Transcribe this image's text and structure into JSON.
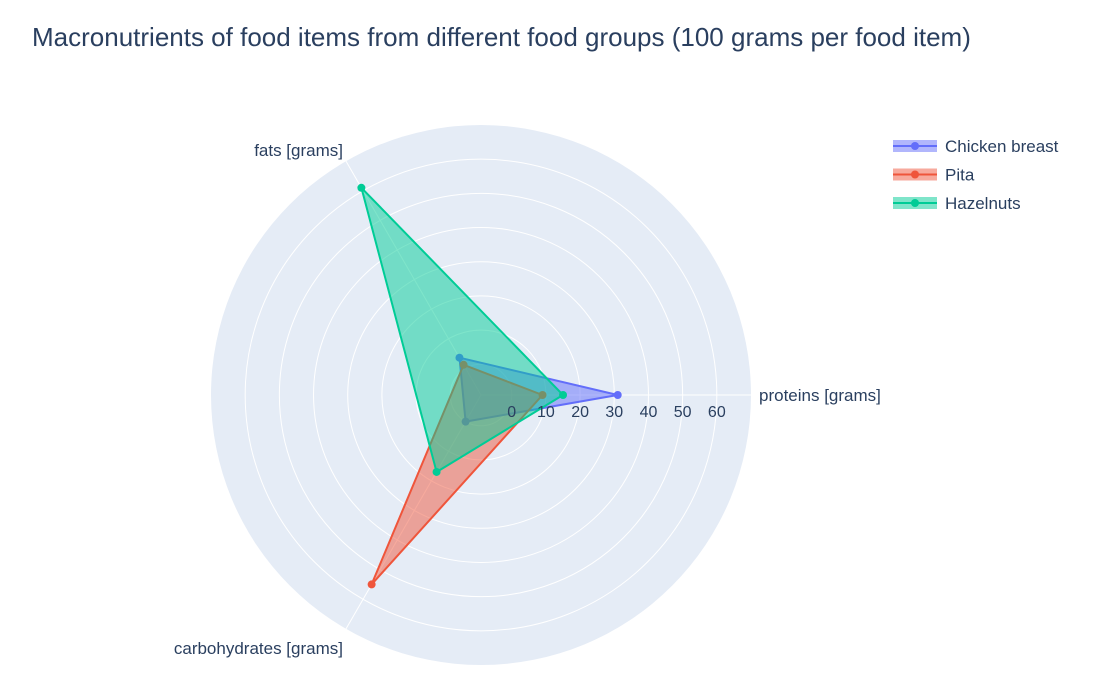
{
  "chart_data": {
    "type": "radar",
    "title": "Macronutrients of food items from different food groups (100 grams per food item)",
    "axes": [
      "proteins [grams]",
      "fats [grams]",
      "carbohydrates [grams]"
    ],
    "radial_ticks": [
      "0",
      "10",
      "20",
      "30",
      "40",
      "50",
      "60"
    ],
    "radial_range": [
      -9,
      60
    ],
    "background_color": "#e5ecf6",
    "grid": true,
    "legend_position": "top-right",
    "series": [
      {
        "name": "Chicken breast",
        "color": "#636efa",
        "values": [
          31,
          3.6,
          0
        ]
      },
      {
        "name": "Pita",
        "color": "#ef553b",
        "values": [
          9,
          1.2,
          55
        ]
      },
      {
        "name": "Hazelnuts",
        "color": "#00cc96",
        "values": [
          15,
          61,
          17
        ]
      }
    ]
  }
}
